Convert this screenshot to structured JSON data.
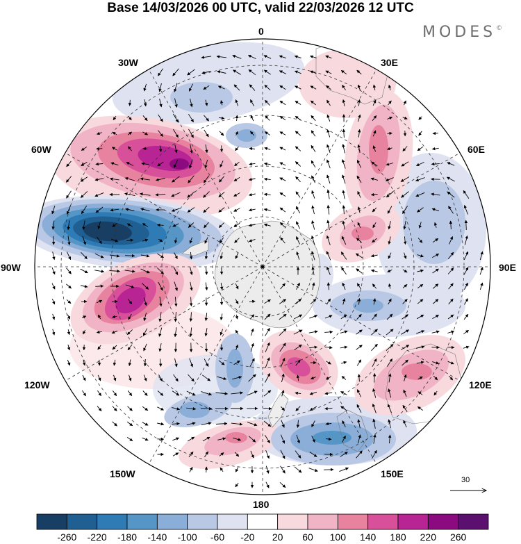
{
  "title": "Base 14/03/2026 00 UTC, valid 22/03/2026 12 UTC",
  "brand": "MODES",
  "brand_mark": "©",
  "longitude_labels": {
    "top": "0",
    "top_right": "30E",
    "right_upper": "60E",
    "right": "90E",
    "right_lower": "120E",
    "bottom_right": "150E",
    "bottom": "180",
    "bottom_left": "150W",
    "left_lower": "120W",
    "left": "90W",
    "left_upper": "60W",
    "top_left": "30W"
  },
  "vector_reference": "30",
  "colorbar": {
    "ticks": [
      "-260",
      "-220",
      "-180",
      "-140",
      "-100",
      "-60",
      "-20",
      "20",
      "60",
      "100",
      "140",
      "180",
      "220",
      "260"
    ],
    "colors": [
      "#183e63",
      "#1f5f91",
      "#2f7bb5",
      "#5596c7",
      "#8aaed7",
      "#b9c8e4",
      "#dfe3f1",
      "#ffffff",
      "#f8dade",
      "#f1b3c6",
      "#e8839f",
      "#d9509a",
      "#b82493",
      "#8c0a7f",
      "#5b0f6e"
    ]
  },
  "icons": {
    "pole": "south-pole-marker",
    "arrow": "wind-vector-arrow"
  }
}
